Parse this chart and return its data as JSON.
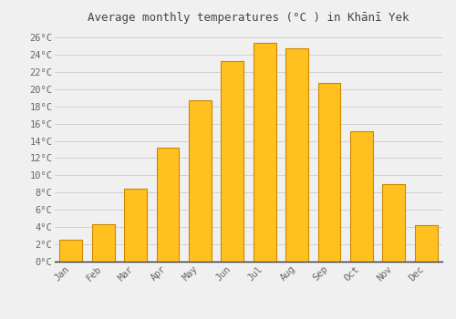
{
  "title": "Average monthly temperatures (°C ) in Khānī Yek",
  "months": [
    "Jan",
    "Feb",
    "Mar",
    "Apr",
    "May",
    "Jun",
    "Jul",
    "Aug",
    "Sep",
    "Oct",
    "Nov",
    "Dec"
  ],
  "values": [
    2.5,
    4.3,
    8.5,
    13.2,
    18.7,
    23.2,
    25.4,
    24.7,
    20.7,
    15.1,
    9.0,
    4.2
  ],
  "bar_color": "#FFC020",
  "bar_edge_color": "#CC8800",
  "ylim": [
    0,
    27
  ],
  "yticks": [
    0,
    2,
    4,
    6,
    8,
    10,
    12,
    14,
    16,
    18,
    20,
    22,
    24,
    26
  ],
  "background_color": "#f0f0f0",
  "plot_background": "#f0f0f0",
  "grid_color": "#cccccc",
  "title_fontsize": 9,
  "tick_fontsize": 7.5,
  "font_family": "monospace",
  "title_color": "#444444",
  "tick_color": "#666666"
}
